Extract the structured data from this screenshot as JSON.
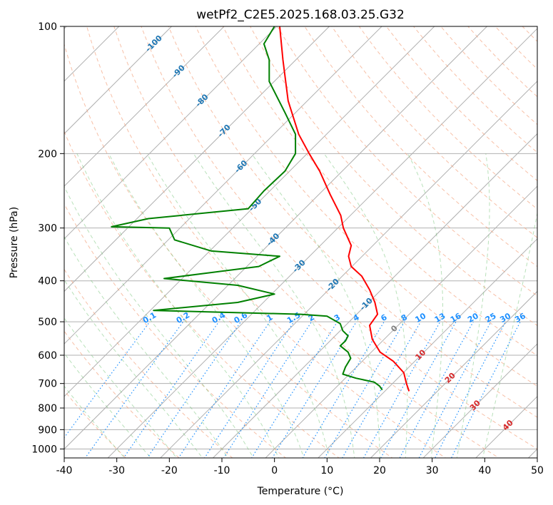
{
  "chart_data": {
    "type": "line",
    "title": "wetPf2_C2E5.2025.168.03.25.G32",
    "xlabel": "Temperature (°C)",
    "ylabel": "Pressure (hPa)",
    "xlim": [
      -40,
      50
    ],
    "ylim": [
      1050,
      100
    ],
    "y_scale": "log",
    "x_ticks": [
      -40,
      -30,
      -20,
      -10,
      0,
      10,
      20,
      30,
      40,
      50
    ],
    "y_ticks": [
      100,
      200,
      300,
      400,
      500,
      600,
      700,
      800,
      900,
      1000
    ],
    "grid": true,
    "series": [
      {
        "color": "#ff0000",
        "points": [
          [
            1,
            100
          ],
          [
            1.6,
            120
          ],
          [
            2.6,
            150
          ],
          [
            4.6,
            180
          ],
          [
            6.6,
            200
          ],
          [
            8.6,
            220
          ],
          [
            10.6,
            250
          ],
          [
            12.6,
            280
          ],
          [
            13.1,
            300
          ],
          [
            14.6,
            330
          ],
          [
            14.1,
            350
          ],
          [
            14.6,
            370
          ],
          [
            16.6,
            390
          ],
          [
            18.1,
            420
          ],
          [
            19.1,
            450
          ],
          [
            19.6,
            480
          ],
          [
            18.1,
            510
          ],
          [
            18.6,
            550
          ],
          [
            20.1,
            590
          ],
          [
            22.6,
            620
          ],
          [
            24.6,
            660
          ],
          [
            25.1,
            700
          ],
          [
            25.6,
            730
          ]
        ]
      },
      {
        "color": "#008000",
        "points": [
          [
            0,
            100
          ],
          [
            -2,
            110
          ],
          [
            -1,
            120
          ],
          [
            -1,
            135
          ],
          [
            2,
            160
          ],
          [
            4,
            180
          ],
          [
            4,
            200
          ],
          [
            2,
            220
          ],
          [
            -2,
            245
          ],
          [
            -5,
            270
          ],
          [
            -24,
            285
          ],
          [
            -31,
            298
          ],
          [
            -20,
            300
          ],
          [
            -19,
            320
          ],
          [
            -12,
            340
          ],
          [
            1,
            350
          ],
          [
            -3,
            370
          ],
          [
            -21,
            395
          ],
          [
            -7,
            410
          ],
          [
            0,
            430
          ],
          [
            -7,
            450
          ],
          [
            -23,
            470
          ],
          [
            5,
            480
          ],
          [
            10,
            485
          ],
          [
            12.5,
            505
          ],
          [
            13,
            525
          ],
          [
            14,
            540
          ],
          [
            13.5,
            555
          ],
          [
            12.5,
            570
          ],
          [
            14,
            590
          ],
          [
            14.5,
            610
          ],
          [
            13.5,
            640
          ],
          [
            13,
            665
          ],
          [
            15.5,
            680
          ],
          [
            19,
            695
          ],
          [
            20,
            710
          ],
          [
            20.5,
            725
          ]
        ]
      }
    ],
    "isotherms": [
      -100,
      -90,
      -80,
      -70,
      -60,
      -50,
      -40,
      -30,
      -20,
      -10
    ],
    "isotherm_color": "#1f77b4",
    "dry_adiabat_labels": [
      0,
      10,
      20,
      30,
      40
    ],
    "dry_adiabat_label_colors": {
      "0": "#808080",
      "default": "#d62728"
    },
    "mixing_ratios": [
      "0.1",
      "0.2",
      "0.4",
      "0.6",
      "1",
      "1.5",
      "2",
      "3",
      "4",
      "6",
      "8",
      "10",
      "13",
      "16",
      "20",
      "25",
      "30",
      "36"
    ],
    "mixing_ratio_color": "#1e90ff"
  }
}
